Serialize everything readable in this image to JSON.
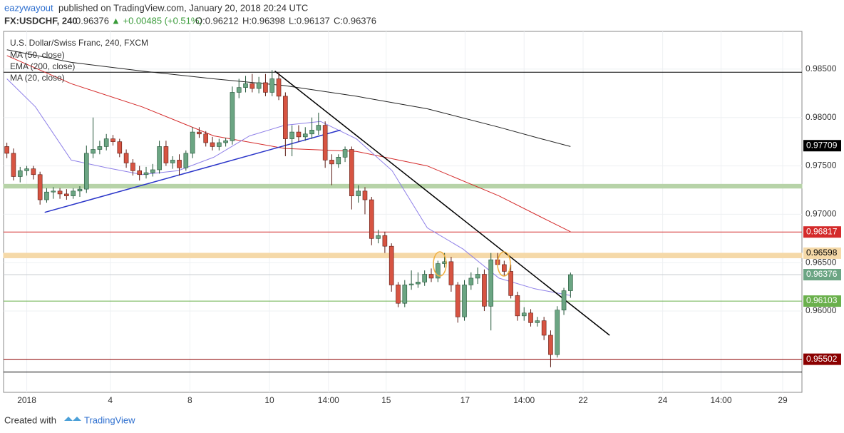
{
  "header": {
    "author": "eazywayout",
    "published": "published on TradingView.com, January 20, 2018 20:24 UTC",
    "symbol": "FX:USDCHF, 240",
    "last": "0.96376",
    "change": "▲ +0.00485 (+0.51%)",
    "open": "O:0.96212",
    "high": "H:0.96398",
    "low": "L:0.96137",
    "close": "C:0.96376"
  },
  "footer": {
    "created": "Created with",
    "brand": "TradingView"
  },
  "chart_data": {
    "type": "candlestick",
    "title": "U.S. Dollar/Swiss Franc, 240, FXCM",
    "up_color": "#6ba583",
    "down_color": "#d75442",
    "open": [
      0.977,
      0.9763,
      0.9739,
      0.9745,
      0.9747,
      0.9741,
      0.9715,
      0.9723,
      0.9724,
      0.9721,
      0.9719,
      0.9724,
      0.9726,
      0.9763,
      0.9767,
      0.977,
      0.9778,
      0.9775,
      0.9763,
      0.9753,
      0.9745,
      0.9741,
      0.9743,
      0.9746,
      0.977,
      0.9753,
      0.9756,
      0.9748,
      0.9763,
      0.9785,
      0.9783,
      0.9774,
      0.977,
      0.9774,
      0.9776,
      0.9826,
      0.9831,
      0.9835,
      0.983,
      0.9836,
      0.9826,
      0.984,
      0.9822,
      0.9778,
      0.9785,
      0.978,
      0.9783,
      0.9787,
      0.9792,
      0.9756,
      0.9752,
      0.9759,
      0.9767,
      0.9719,
      0.9724,
      0.9715,
      0.9675,
      0.9678,
      0.9667,
      0.9627,
      0.9608,
      0.9627,
      0.9628,
      0.963,
      0.9638,
      0.9634,
      0.9649,
      0.9651,
      0.9627,
      0.9594,
      0.9627,
      0.9634,
      0.9638,
      0.9605,
      0.9653,
      0.9648,
      0.9641,
      0.9616,
      0.9595,
      0.9598,
      0.9588,
      0.959,
      0.9575,
      0.9555,
      0.9601,
      0.9621
    ],
    "high": [
      0.9774,
      0.9768,
      0.9749,
      0.975,
      0.975,
      0.9744,
      0.9727,
      0.9728,
      0.9727,
      0.9726,
      0.9727,
      0.9729,
      0.9771,
      0.98,
      0.9776,
      0.9783,
      0.9782,
      0.9778,
      0.9767,
      0.9757,
      0.975,
      0.9749,
      0.9752,
      0.9776,
      0.9776,
      0.976,
      0.9762,
      0.9766,
      0.979,
      0.979,
      0.9786,
      0.978,
      0.9778,
      0.9779,
      0.9832,
      0.984,
      0.9843,
      0.9845,
      0.9842,
      0.9845,
      0.9849,
      0.9846,
      0.9826,
      0.9792,
      0.9792,
      0.979,
      0.98,
      0.9805,
      0.9796,
      0.9762,
      0.9762,
      0.977,
      0.977,
      0.973,
      0.9728,
      0.9718,
      0.9684,
      0.9682,
      0.967,
      0.963,
      0.9632,
      0.9642,
      0.964,
      0.9642,
      0.9644,
      0.9652,
      0.966,
      0.9656,
      0.963,
      0.9632,
      0.964,
      0.9645,
      0.9643,
      0.966,
      0.966,
      0.9652,
      0.9648,
      0.962,
      0.9604,
      0.9602,
      0.9594,
      0.9594,
      0.958,
      0.9605,
      0.9624,
      0.96398
    ],
    "low": [
      0.9758,
      0.9735,
      0.9733,
      0.974,
      0.9736,
      0.971,
      0.9712,
      0.9716,
      0.9716,
      0.9715,
      0.9716,
      0.9718,
      0.9722,
      0.9758,
      0.9762,
      0.9766,
      0.9771,
      0.9759,
      0.9748,
      0.974,
      0.9735,
      0.9737,
      0.9739,
      0.9742,
      0.975,
      0.9747,
      0.974,
      0.9745,
      0.9758,
      0.9779,
      0.977,
      0.9766,
      0.9766,
      0.977,
      0.9772,
      0.982,
      0.9826,
      0.9826,
      0.9825,
      0.9822,
      0.9822,
      0.9818,
      0.976,
      0.976,
      0.9775,
      0.9776,
      0.9778,
      0.9782,
      0.9748,
      0.973,
      0.9748,
      0.9754,
      0.9705,
      0.9712,
      0.97,
      0.9668,
      0.967,
      0.966,
      0.962,
      0.9604,
      0.9604,
      0.9622,
      0.9624,
      0.9626,
      0.963,
      0.963,
      0.9645,
      0.962,
      0.9588,
      0.959,
      0.9622,
      0.9628,
      0.96,
      0.958,
      0.9645,
      0.9636,
      0.9613,
      0.959,
      0.959,
      0.9584,
      0.9584,
      0.957,
      0.9542,
      0.9552,
      0.9596,
      0.96137
    ],
    "close": [
      0.9763,
      0.9739,
      0.9745,
      0.9747,
      0.9741,
      0.9715,
      0.9723,
      0.9724,
      0.9721,
      0.9719,
      0.9724,
      0.9726,
      0.9763,
      0.9767,
      0.977,
      0.9778,
      0.9775,
      0.9763,
      0.9753,
      0.9745,
      0.9741,
      0.9743,
      0.9746,
      0.977,
      0.9753,
      0.9756,
      0.9748,
      0.9763,
      0.9785,
      0.9783,
      0.9774,
      0.977,
      0.9774,
      0.9776,
      0.9826,
      0.9831,
      0.9835,
      0.983,
      0.9836,
      0.9826,
      0.984,
      0.9822,
      0.9778,
      0.9785,
      0.978,
      0.9783,
      0.9787,
      0.9792,
      0.9756,
      0.9752,
      0.9759,
      0.9767,
      0.9719,
      0.9724,
      0.9715,
      0.9675,
      0.9678,
      0.9667,
      0.9627,
      0.9608,
      0.9627,
      0.9628,
      0.963,
      0.9638,
      0.9634,
      0.9649,
      0.9651,
      0.9627,
      0.9594,
      0.9627,
      0.9634,
      0.9638,
      0.9605,
      0.9653,
      0.9648,
      0.9641,
      0.9616,
      0.9595,
      0.9598,
      0.9588,
      0.959,
      0.9575,
      0.9555,
      0.9601,
      0.9621,
      0.96376
    ],
    "series": [
      {
        "name": "MA (50, close)",
        "color": "#d42a2a",
        "x": [
          0,
          9.7,
          20.4,
          31.2,
          41.9,
          52.7,
          63.4,
          74.2,
          80.6,
          85
        ],
        "values": [
          0.9864,
          0.9835,
          0.9811,
          0.9781,
          0.9768,
          0.9765,
          0.975,
          0.9719,
          0.9697,
          0.9682
        ]
      },
      {
        "name": "EMA (200, close)",
        "color": "#222222",
        "x": [
          0,
          9.7,
          20.4,
          31.2,
          41.9,
          52.7,
          63.4,
          74.2,
          80.6,
          85
        ],
        "values": [
          0.987,
          0.9857,
          0.9848,
          0.984,
          0.9833,
          0.9822,
          0.9809,
          0.979,
          0.9778,
          0.977
        ]
      },
      {
        "name": "MA (20, close)",
        "color": "#8f80e8",
        "x": [
          0,
          4.3,
          9.7,
          15.1,
          20.4,
          25.8,
          31.2,
          36.6,
          41.9,
          47.3,
          52.7,
          58.1,
          63.4,
          68.8,
          74.2,
          79.6,
          85
        ],
        "values": [
          0.984,
          0.9811,
          0.9756,
          0.9748,
          0.9741,
          0.9745,
          0.9759,
          0.9781,
          0.9792,
          0.9796,
          0.9778,
          0.9745,
          0.9686,
          0.9664,
          0.9634,
          0.9623,
          0.9616
        ]
      }
    ],
    "hlines": [
      {
        "value": 0.98468,
        "color": "#000000"
      },
      {
        "value": 0.96817,
        "color": "#d42a2a"
      },
      {
        "value": 0.96376,
        "color": "#c8cdd2"
      },
      {
        "value": 0.96103,
        "color": "#6ab04c"
      },
      {
        "value": 0.95502,
        "color": "#8b0000"
      },
      {
        "value": 0.9537,
        "color": "#000000"
      }
    ],
    "bands": [
      {
        "from": 0.9727,
        "to": 0.9731,
        "color": "#b7d3a8"
      },
      {
        "from": 0.9655,
        "to": 0.96598,
        "color": "#f5d9a8"
      }
    ],
    "trendlines": [
      {
        "color": "#000000",
        "x": [
          40.4,
          90.9
        ],
        "values": [
          0.9848,
          0.9575
        ]
      },
      {
        "color": "#2a35c9",
        "x": [
          5.7,
          50.3
        ],
        "values": [
          0.9702,
          0.9787
        ]
      }
    ],
    "price_labels": [
      {
        "value": 0.97709,
        "color": "#000000",
        "text_color": "#ffffff"
      },
      {
        "value": 0.96817,
        "color": "#d42a2a",
        "text_color": "#ffffff"
      },
      {
        "value": 0.96598,
        "color": "#f5d9a8",
        "text_color": "#000000"
      },
      {
        "value": 0.96376,
        "color": "#6ba583",
        "text_color": "#ffffff"
      },
      {
        "value": 0.96103,
        "color": "#6ab04c",
        "text_color": "#ffffff"
      },
      {
        "value": 0.95502,
        "color": "#8b0000",
        "text_color": "#ffffff"
      }
    ],
    "xlim": [
      -0.5,
      119.9
    ],
    "ylim": [
      0.9516,
      0.9889
    ],
    "xticks": [
      {
        "value": 3,
        "label": "2018"
      },
      {
        "value": 15.6,
        "label": "4"
      },
      {
        "value": 27.6,
        "label": "8"
      },
      {
        "value": 39.6,
        "label": "10"
      },
      {
        "value": 48.5,
        "label": "14:00"
      },
      {
        "value": 57.2,
        "label": "15"
      },
      {
        "value": 69.1,
        "label": "17"
      },
      {
        "value": 78,
        "label": "14:00"
      },
      {
        "value": 86.9,
        "label": "22"
      },
      {
        "value": 98.9,
        "label": "24"
      },
      {
        "value": 107.7,
        "label": "14:00"
      },
      {
        "value": 117,
        "label": "29"
      }
    ],
    "yticks": [
      {
        "value": 0.985,
        "label": "0.98500"
      },
      {
        "value": 0.98,
        "label": "0.98000"
      },
      {
        "value": 0.975,
        "label": "0.97500"
      },
      {
        "value": 0.97,
        "label": "0.97000"
      },
      {
        "value": 0.965,
        "label": "0.96500"
      },
      {
        "value": 0.96,
        "label": "0.96000"
      }
    ],
    "grid": true
  }
}
